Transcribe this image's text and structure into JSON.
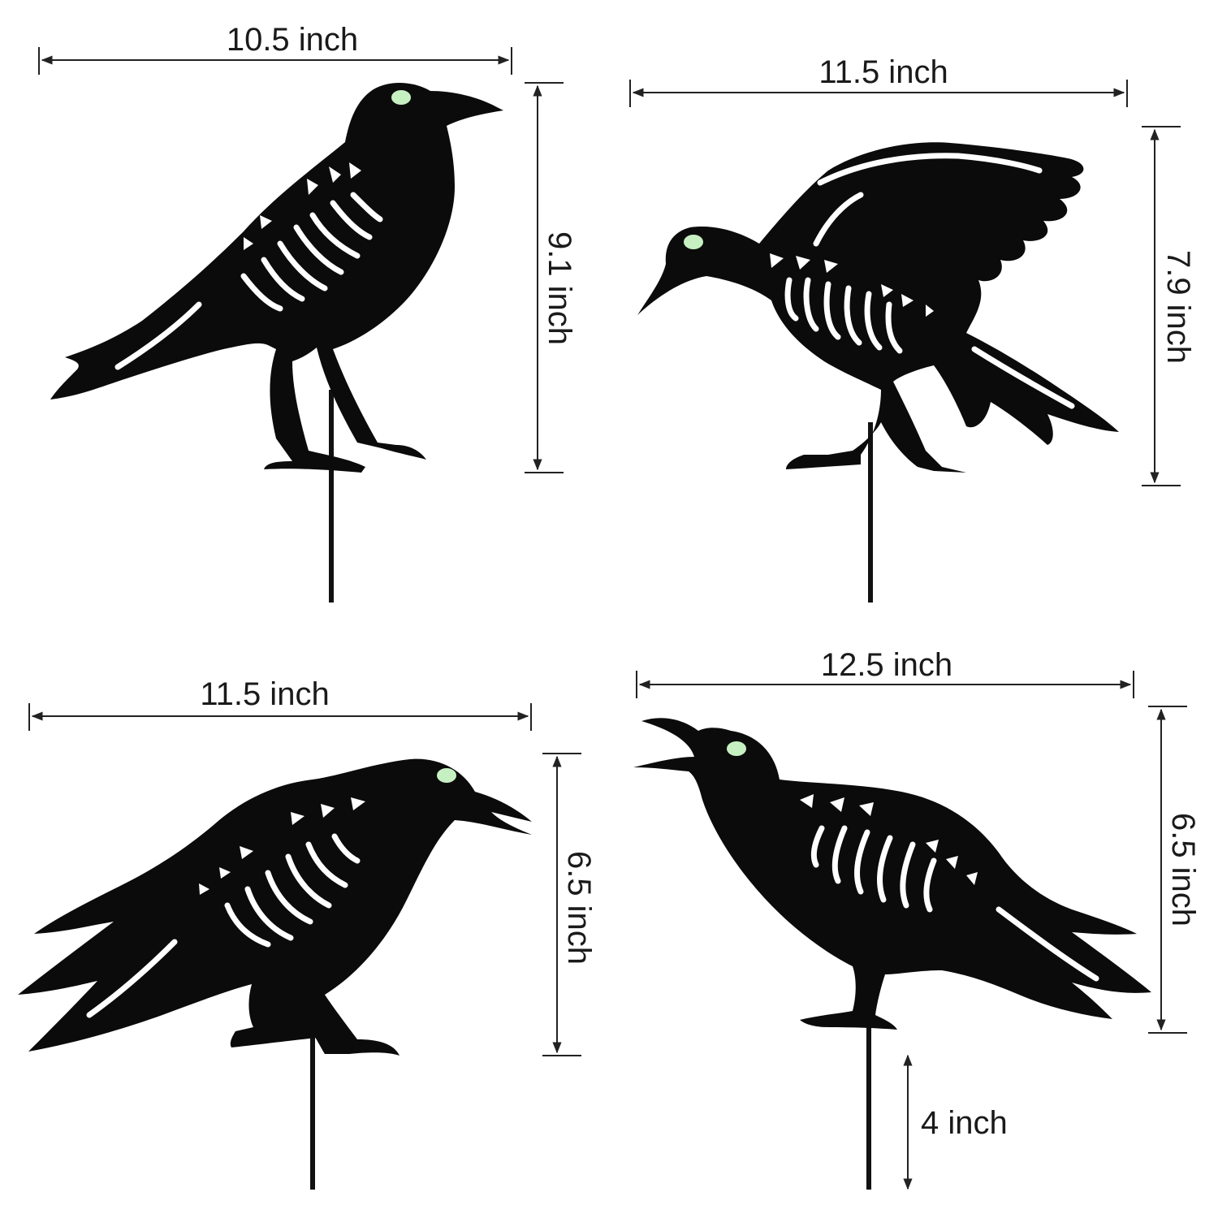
{
  "crows": [
    {
      "width_label": "10.5 inch",
      "height_label": "9.1 inch"
    },
    {
      "width_label": "11.5 inch",
      "height_label": "7.9 inch"
    },
    {
      "width_label": "11.5 inch",
      "height_label": "6.5 inch"
    },
    {
      "width_label": "12.5 inch",
      "height_label": "6.5 inch",
      "stake_label": "4 inch"
    }
  ],
  "colors": {
    "silhouette": "#0b0b0b",
    "eye": "#c6f0c2",
    "bones": "#ffffff",
    "background": "#ffffff"
  },
  "icons": [
    "crow-silhouette-icon",
    "dimension-arrow-icon"
  ]
}
